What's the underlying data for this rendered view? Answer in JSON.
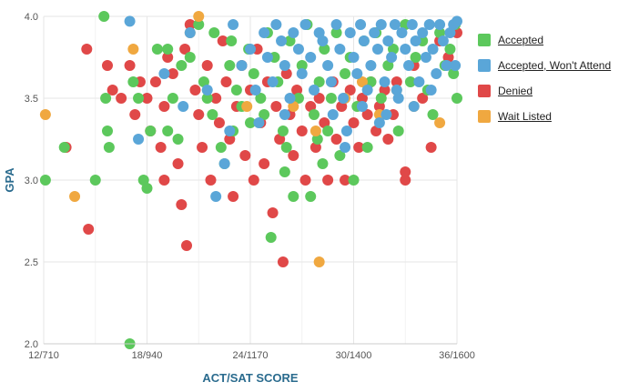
{
  "chart_data": {
    "type": "scatter",
    "title": "",
    "xlabel": "ACT/SAT SCORE",
    "ylabel": "GPA",
    "xlim": [
      12,
      36
    ],
    "ylim": [
      2.0,
      4.0
    ],
    "x_ticks": [
      {
        "value": 12,
        "label": "12/710"
      },
      {
        "value": 18,
        "label": "18/940"
      },
      {
        "value": 24,
        "label": "24/1170"
      },
      {
        "value": 30,
        "label": "30/1400"
      },
      {
        "value": 36,
        "label": "36/1600"
      }
    ],
    "y_ticks": [
      {
        "value": 2.0,
        "label": "2.0"
      },
      {
        "value": 2.5,
        "label": "2.5"
      },
      {
        "value": 3.0,
        "label": "3.0"
      },
      {
        "value": 3.5,
        "label": "3.5"
      },
      {
        "value": 4.0,
        "label": "4.0"
      }
    ],
    "grid": true,
    "legend_position": "right",
    "series": [
      {
        "name": "Accepted",
        "color": "#5cc85c",
        "points": [
          [
            12.1,
            3.0
          ],
          [
            13.2,
            3.2
          ],
          [
            15.0,
            3.0
          ],
          [
            15.5,
            4.0
          ],
          [
            15.6,
            3.5
          ],
          [
            15.7,
            3.3
          ],
          [
            15.8,
            3.2
          ],
          [
            17.0,
            2.0
          ],
          [
            17.2,
            3.6
          ],
          [
            17.5,
            3.5
          ],
          [
            17.8,
            3.0
          ],
          [
            18.0,
            2.95
          ],
          [
            18.2,
            3.3
          ],
          [
            18.6,
            3.8
          ],
          [
            19.2,
            3.8
          ],
          [
            19.2,
            3.3
          ],
          [
            19.5,
            3.5
          ],
          [
            19.8,
            3.25
          ],
          [
            20.0,
            3.7
          ],
          [
            20.5,
            3.75
          ],
          [
            21.0,
            3.95
          ],
          [
            21.3,
            3.6
          ],
          [
            21.5,
            3.5
          ],
          [
            21.9,
            3.9
          ],
          [
            22.3,
            3.2
          ],
          [
            22.5,
            3.1
          ],
          [
            22.8,
            3.7
          ],
          [
            22.9,
            3.85
          ],
          [
            23.2,
            3.55
          ],
          [
            23.5,
            3.45
          ],
          [
            23.9,
            3.8
          ],
          [
            24.2,
            3.65
          ],
          [
            24.6,
            3.5
          ],
          [
            24.8,
            3.4
          ],
          [
            25.0,
            3.9
          ],
          [
            25.2,
            2.65
          ],
          [
            25.4,
            3.75
          ],
          [
            25.6,
            3.6
          ],
          [
            25.9,
            3.3
          ],
          [
            26.1,
            3.2
          ],
          [
            26.3,
            3.85
          ],
          [
            26.5,
            2.9
          ],
          [
            26.8,
            3.5
          ],
          [
            27.0,
            3.7
          ],
          [
            27.3,
            3.95
          ],
          [
            27.5,
            2.9
          ],
          [
            27.7,
            3.4
          ],
          [
            28.0,
            3.6
          ],
          [
            28.3,
            3.8
          ],
          [
            28.5,
            3.3
          ],
          [
            28.7,
            3.5
          ],
          [
            29.0,
            3.9
          ],
          [
            29.2,
            3.15
          ],
          [
            29.5,
            3.65
          ],
          [
            29.8,
            3.75
          ],
          [
            30.0,
            3.0
          ],
          [
            30.2,
            3.45
          ],
          [
            30.6,
            3.85
          ],
          [
            31.0,
            3.6
          ],
          [
            31.3,
            3.9
          ],
          [
            31.6,
            3.5
          ],
          [
            32.0,
            3.7
          ],
          [
            32.3,
            3.8
          ],
          [
            32.6,
            3.3
          ],
          [
            33.0,
            3.95
          ],
          [
            33.3,
            3.6
          ],
          [
            33.6,
            3.75
          ],
          [
            34.0,
            3.85
          ],
          [
            34.3,
            3.55
          ],
          [
            34.6,
            3.4
          ],
          [
            35.0,
            3.9
          ],
          [
            35.3,
            3.7
          ],
          [
            35.6,
            3.8
          ],
          [
            35.9,
            3.95
          ],
          [
            36.0,
            3.5
          ],
          [
            35.8,
            3.65
          ],
          [
            24.0,
            3.35
          ],
          [
            26.0,
            3.05
          ],
          [
            28.2,
            3.1
          ],
          [
            30.8,
            3.2
          ],
          [
            27.9,
            3.25
          ],
          [
            23.0,
            3.3
          ],
          [
            21.8,
            3.4
          ]
        ]
      },
      {
        "name": "Accepted, Won't Attend",
        "color": "#5aa6d8",
        "points": [
          [
            17.0,
            3.97
          ],
          [
            17.5,
            3.25
          ],
          [
            19.0,
            3.65
          ],
          [
            20.1,
            3.45
          ],
          [
            20.5,
            3.9
          ],
          [
            21.5,
            3.55
          ],
          [
            22.0,
            2.9
          ],
          [
            22.5,
            3.1
          ],
          [
            22.8,
            3.3
          ],
          [
            23.0,
            3.95
          ],
          [
            23.5,
            3.7
          ],
          [
            24.0,
            3.8
          ],
          [
            24.3,
            3.55
          ],
          [
            24.8,
            3.9
          ],
          [
            25.0,
            3.75
          ],
          [
            25.3,
            3.6
          ],
          [
            25.5,
            3.95
          ],
          [
            25.8,
            3.85
          ],
          [
            26.0,
            3.7
          ],
          [
            26.3,
            3.5
          ],
          [
            26.5,
            3.9
          ],
          [
            26.8,
            3.8
          ],
          [
            27.0,
            3.65
          ],
          [
            27.2,
            3.95
          ],
          [
            27.5,
            3.75
          ],
          [
            27.7,
            3.55
          ],
          [
            28.0,
            3.9
          ],
          [
            28.2,
            3.85
          ],
          [
            28.5,
            3.7
          ],
          [
            28.7,
            3.6
          ],
          [
            29.0,
            3.95
          ],
          [
            29.2,
            3.8
          ],
          [
            29.4,
            3.5
          ],
          [
            29.6,
            3.3
          ],
          [
            29.8,
            3.9
          ],
          [
            30.0,
            3.75
          ],
          [
            30.2,
            3.65
          ],
          [
            30.4,
            3.95
          ],
          [
            30.6,
            3.85
          ],
          [
            30.8,
            3.55
          ],
          [
            31.0,
            3.7
          ],
          [
            31.2,
            3.9
          ],
          [
            31.4,
            3.8
          ],
          [
            31.6,
            3.95
          ],
          [
            31.8,
            3.6
          ],
          [
            32.0,
            3.85
          ],
          [
            32.2,
            3.75
          ],
          [
            32.4,
            3.95
          ],
          [
            32.6,
            3.5
          ],
          [
            32.8,
            3.9
          ],
          [
            33.0,
            3.8
          ],
          [
            33.2,
            3.7
          ],
          [
            33.4,
            3.95
          ],
          [
            33.6,
            3.85
          ],
          [
            33.8,
            3.6
          ],
          [
            34.0,
            3.9
          ],
          [
            34.2,
            3.75
          ],
          [
            34.4,
            3.95
          ],
          [
            34.6,
            3.8
          ],
          [
            34.8,
            3.65
          ],
          [
            35.0,
            3.95
          ],
          [
            35.2,
            3.85
          ],
          [
            35.4,
            3.7
          ],
          [
            35.6,
            3.9
          ],
          [
            35.8,
            3.95
          ],
          [
            36.0,
            3.97
          ],
          [
            35.9,
            3.7
          ],
          [
            29.5,
            3.2
          ],
          [
            31.5,
            3.35
          ],
          [
            33.5,
            3.45
          ],
          [
            26.0,
            3.4
          ],
          [
            24.5,
            3.35
          ],
          [
            30.5,
            3.45
          ],
          [
            32.5,
            3.55
          ],
          [
            28.8,
            3.4
          ],
          [
            34.5,
            3.55
          ],
          [
            31.9,
            3.4
          ]
        ]
      },
      {
        "name": "Denied",
        "color": "#e04848",
        "points": [
          [
            13.3,
            3.2
          ],
          [
            14.5,
            3.8
          ],
          [
            14.6,
            2.7
          ],
          [
            15.7,
            3.7
          ],
          [
            16.0,
            3.55
          ],
          [
            16.5,
            3.5
          ],
          [
            17.0,
            3.7
          ],
          [
            17.3,
            3.4
          ],
          [
            17.6,
            3.6
          ],
          [
            18.0,
            3.5
          ],
          [
            18.2,
            3.3
          ],
          [
            18.5,
            3.6
          ],
          [
            18.8,
            3.2
          ],
          [
            19.0,
            3.45
          ],
          [
            19.0,
            3.0
          ],
          [
            19.2,
            3.75
          ],
          [
            19.5,
            3.65
          ],
          [
            19.8,
            3.1
          ],
          [
            20.0,
            2.85
          ],
          [
            20.2,
            3.8
          ],
          [
            20.3,
            2.6
          ],
          [
            20.5,
            3.95
          ],
          [
            20.8,
            3.55
          ],
          [
            21.0,
            3.4
          ],
          [
            21.2,
            3.2
          ],
          [
            21.5,
            3.7
          ],
          [
            21.7,
            3.0
          ],
          [
            22.0,
            3.5
          ],
          [
            22.2,
            3.35
          ],
          [
            22.4,
            3.85
          ],
          [
            22.6,
            3.6
          ],
          [
            22.8,
            3.25
          ],
          [
            23.0,
            2.9
          ],
          [
            23.2,
            3.45
          ],
          [
            23.5,
            3.7
          ],
          [
            23.7,
            3.15
          ],
          [
            24.0,
            3.55
          ],
          [
            24.2,
            3.0
          ],
          [
            24.4,
            3.8
          ],
          [
            24.6,
            3.35
          ],
          [
            24.8,
            3.1
          ],
          [
            25.0,
            3.6
          ],
          [
            25.3,
            2.8
          ],
          [
            25.5,
            3.45
          ],
          [
            25.7,
            3.25
          ],
          [
            25.9,
            2.5
          ],
          [
            26.1,
            3.65
          ],
          [
            26.3,
            3.4
          ],
          [
            26.5,
            3.15
          ],
          [
            26.7,
            3.55
          ],
          [
            27.0,
            3.3
          ],
          [
            27.2,
            3.0
          ],
          [
            27.5,
            3.45
          ],
          [
            27.8,
            3.2
          ],
          [
            28.0,
            3.5
          ],
          [
            28.3,
            3.35
          ],
          [
            28.5,
            3.0
          ],
          [
            28.8,
            3.6
          ],
          [
            29.0,
            3.25
          ],
          [
            29.3,
            3.45
          ],
          [
            29.5,
            3.0
          ],
          [
            29.8,
            3.55
          ],
          [
            30.0,
            3.35
          ],
          [
            30.3,
            3.2
          ],
          [
            30.5,
            3.5
          ],
          [
            30.8,
            3.4
          ],
          [
            31.0,
            3.6
          ],
          [
            31.3,
            3.3
          ],
          [
            31.5,
            3.45
          ],
          [
            31.8,
            3.55
          ],
          [
            32.0,
            3.25
          ],
          [
            32.3,
            3.4
          ],
          [
            32.5,
            3.6
          ],
          [
            33.0,
            3.05
          ],
          [
            33.0,
            3.0
          ],
          [
            33.5,
            3.7
          ],
          [
            34.0,
            3.5
          ],
          [
            34.5,
            3.2
          ],
          [
            35.0,
            3.85
          ],
          [
            35.5,
            3.75
          ],
          [
            36.0,
            3.9
          ]
        ]
      },
      {
        "name": "Wait Listed",
        "color": "#f0a840",
        "points": [
          [
            12.1,
            3.4
          ],
          [
            13.8,
            2.9
          ],
          [
            17.2,
            3.8
          ],
          [
            20.5,
            3.9
          ],
          [
            21.0,
            4.0
          ],
          [
            23.8,
            3.45
          ],
          [
            26.5,
            3.45
          ],
          [
            27.8,
            3.3
          ],
          [
            28.0,
            2.5
          ],
          [
            29.5,
            3.5
          ],
          [
            30.5,
            3.6
          ],
          [
            31.5,
            3.4
          ],
          [
            32.5,
            3.55
          ],
          [
            33.5,
            3.45
          ],
          [
            35.0,
            3.35
          ]
        ]
      }
    ]
  }
}
